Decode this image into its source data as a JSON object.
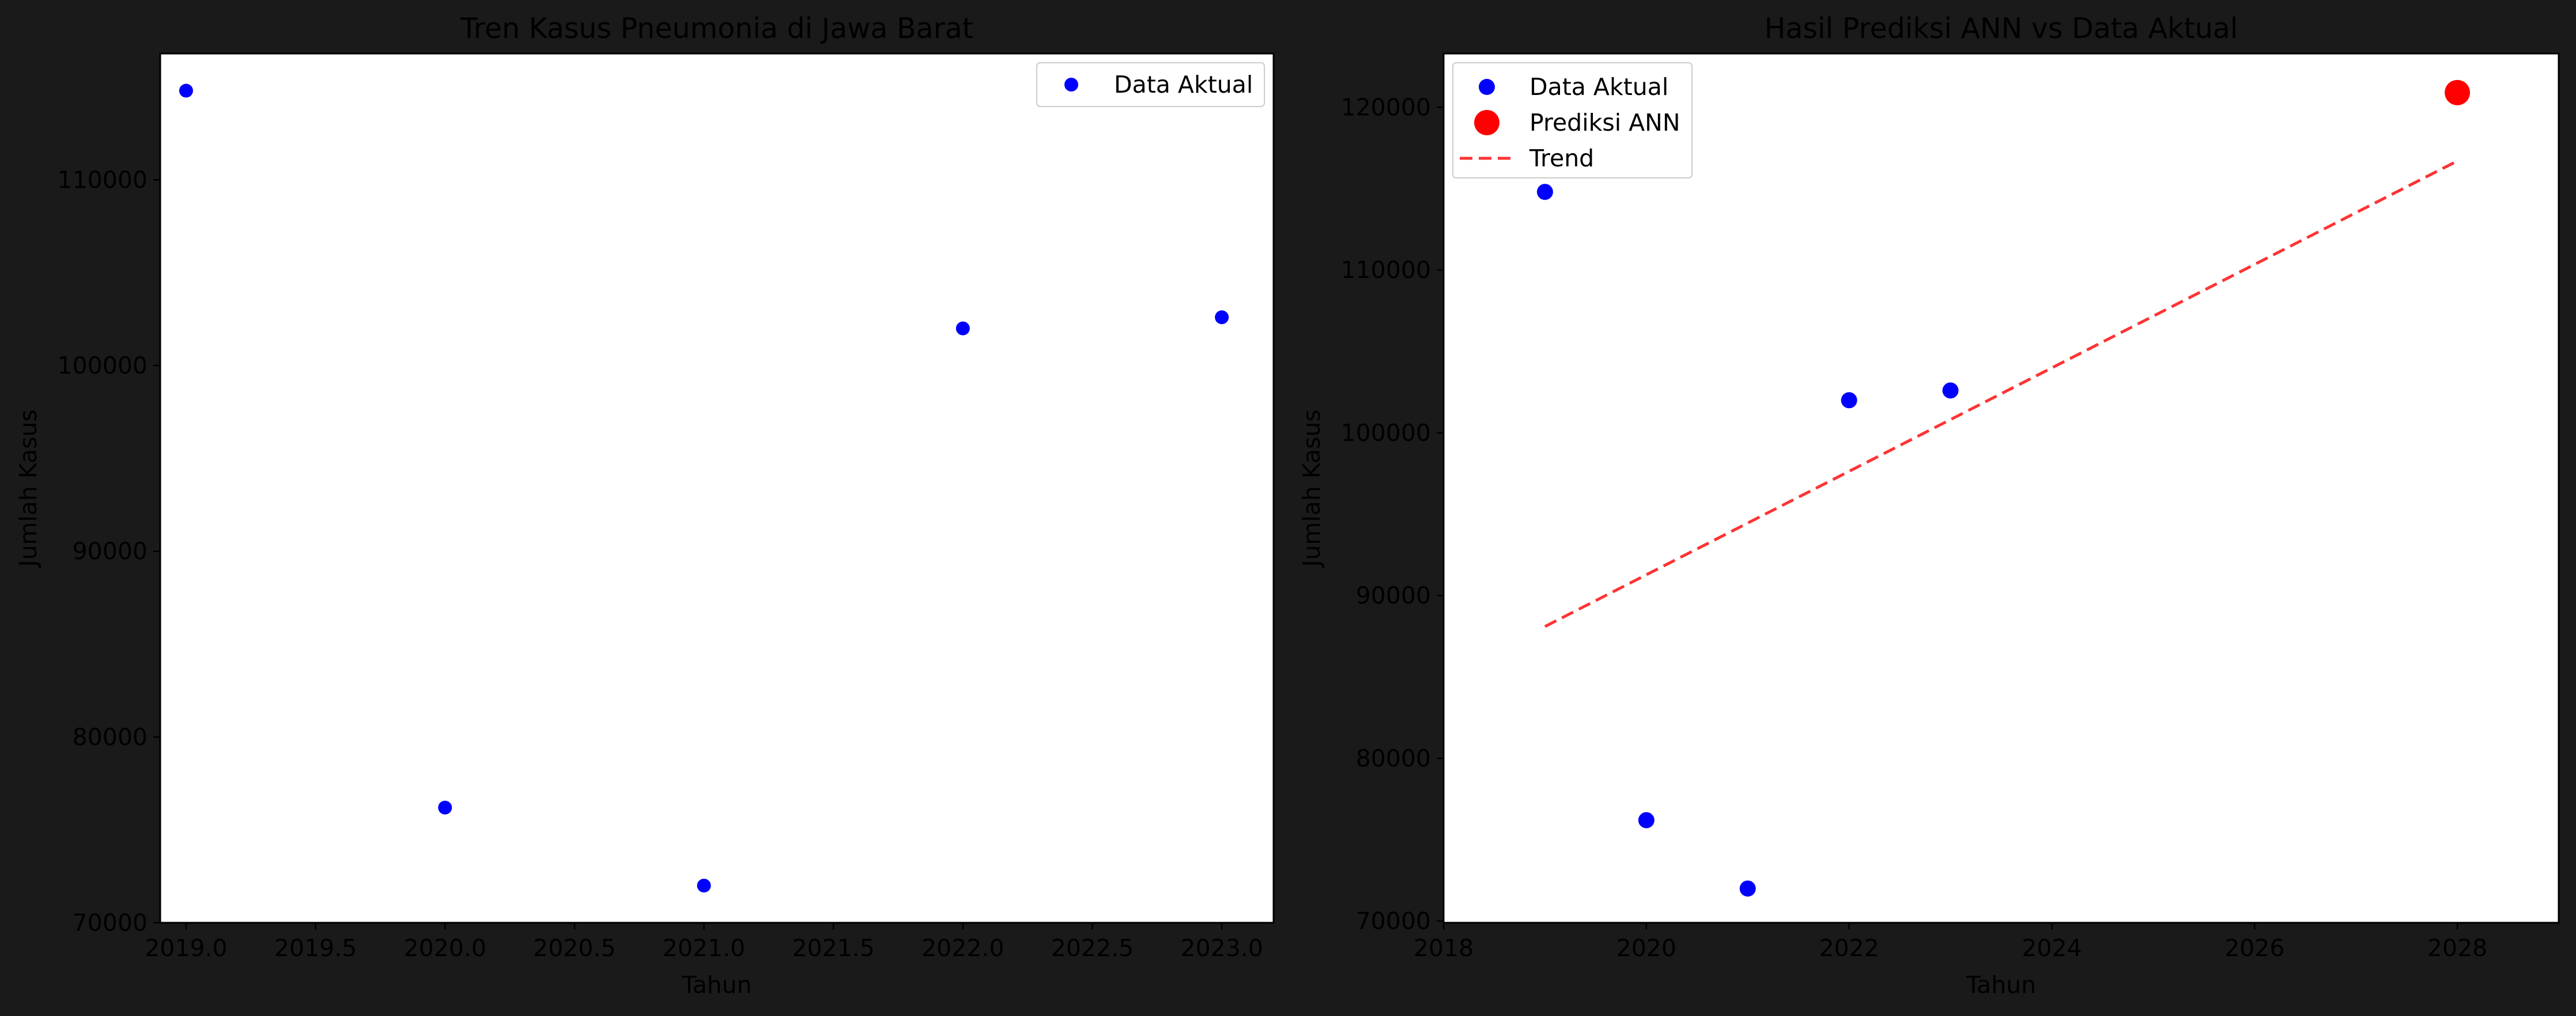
{
  "chart_data": [
    {
      "type": "scatter",
      "title": "Tren Kasus Pneumonia di Jawa Barat",
      "xlabel": "Tahun",
      "ylabel": "Jumlah Kasus",
      "xlim": [
        2018.9,
        2023.2
      ],
      "ylim": [
        70000,
        116800
      ],
      "xticks": [
        "2019.0",
        "2019.5",
        "2020.0",
        "2020.5",
        "2021.0",
        "2021.5",
        "2022.0",
        "2022.5",
        "2023.0"
      ],
      "xtick_values": [
        2019.0,
        2019.5,
        2020.0,
        2020.5,
        2021.0,
        2021.5,
        2022.0,
        2022.5,
        2023.0
      ],
      "yticks": [
        "70000",
        "80000",
        "90000",
        "100000",
        "110000"
      ],
      "ytick_values": [
        70000,
        80000,
        90000,
        100000,
        110000
      ],
      "grid": false,
      "legend_position": "top-right",
      "series": [
        {
          "name": "Data Aktual",
          "marker": "circle",
          "color": "#0000ff",
          "x": [
            2019,
            2020,
            2021,
            2022,
            2023
          ],
          "y": [
            114800,
            76200,
            72000,
            102000,
            102600
          ]
        }
      ]
    },
    {
      "type": "scatter",
      "title": "Hasil Prediksi ANN vs Data Aktual",
      "xlabel": "Tahun",
      "ylabel": "Jumlah Kasus",
      "xlim": [
        2018,
        2029
      ],
      "ylim": [
        69900,
        123300
      ],
      "xticks": [
        "2018",
        "2020",
        "2022",
        "2024",
        "2026",
        "2028"
      ],
      "xtick_values": [
        2018,
        2020,
        2022,
        2024,
        2026,
        2028
      ],
      "yticks": [
        "70000",
        "80000",
        "90000",
        "100000",
        "110000",
        "120000"
      ],
      "ytick_values": [
        70000,
        80000,
        90000,
        100000,
        110000,
        120000
      ],
      "grid": false,
      "legend_position": "top-left",
      "series": [
        {
          "name": "Data Aktual",
          "marker": "circle",
          "color": "#0000ff",
          "x": [
            2019,
            2020,
            2021,
            2022,
            2023
          ],
          "y": [
            114800,
            76200,
            72000,
            102000,
            102600
          ]
        },
        {
          "name": "Prediksi ANN",
          "marker": "circle-large",
          "color": "#ff0000",
          "x": [
            2028
          ],
          "y": [
            120900
          ]
        },
        {
          "name": "Trend",
          "marker": "dashed-line",
          "color": "#ff3333",
          "x": [
            2019,
            2028
          ],
          "y": [
            88100,
            116700
          ]
        }
      ]
    }
  ]
}
